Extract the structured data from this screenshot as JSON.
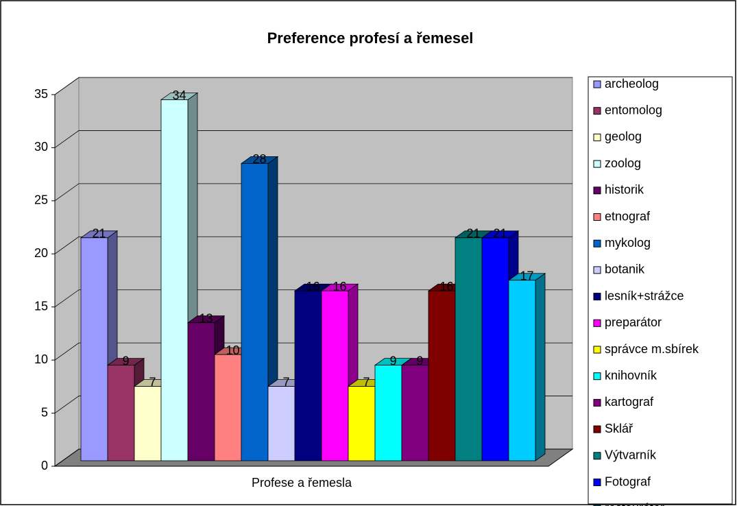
{
  "chart_data": {
    "type": "bar",
    "title": "Preference profesí a řemesel",
    "categories": [
      "Profese a řemesla"
    ],
    "series": [
      {
        "name": "archeolog",
        "color": "#9999ff",
        "values": [
          21
        ]
      },
      {
        "name": "entomolog",
        "color": "#993366",
        "values": [
          9
        ]
      },
      {
        "name": "geolog",
        "color": "#ffffcc",
        "values": [
          7
        ]
      },
      {
        "name": "zoolog",
        "color": "#ccffff",
        "values": [
          34
        ]
      },
      {
        "name": "historik",
        "color": "#660066",
        "values": [
          13
        ]
      },
      {
        "name": "etnograf",
        "color": "#ff8080",
        "values": [
          10
        ]
      },
      {
        "name": "mykolog",
        "color": "#0066cc",
        "values": [
          28
        ]
      },
      {
        "name": "botanik",
        "color": "#ccccff",
        "values": [
          7
        ]
      },
      {
        "name": "lesník+strážce",
        "color": "#000080",
        "values": [
          16
        ]
      },
      {
        "name": "preparátor",
        "color": "#ff00ff",
        "values": [
          16
        ]
      },
      {
        "name": "správce m.sbírek",
        "color": "#ffff00",
        "values": [
          7
        ]
      },
      {
        "name": "knihovník",
        "color": "#00ffff",
        "values": [
          9
        ]
      },
      {
        "name": "kartograf",
        "color": "#800080",
        "values": [
          9
        ]
      },
      {
        "name": "Sklář",
        "color": "#800000",
        "values": [
          16
        ]
      },
      {
        "name": "Výtvarník",
        "color": "#008080",
        "values": [
          21
        ]
      },
      {
        "name": "Fotograf",
        "color": "#0000ff",
        "values": [
          21
        ]
      },
      {
        "name": "restaurátor",
        "color": "#00ccff",
        "values": [
          17
        ]
      }
    ],
    "ylim": [
      0,
      35
    ],
    "yticks": [
      0,
      5,
      10,
      15,
      20,
      25,
      30,
      35
    ],
    "grid": true,
    "legend": "right"
  }
}
